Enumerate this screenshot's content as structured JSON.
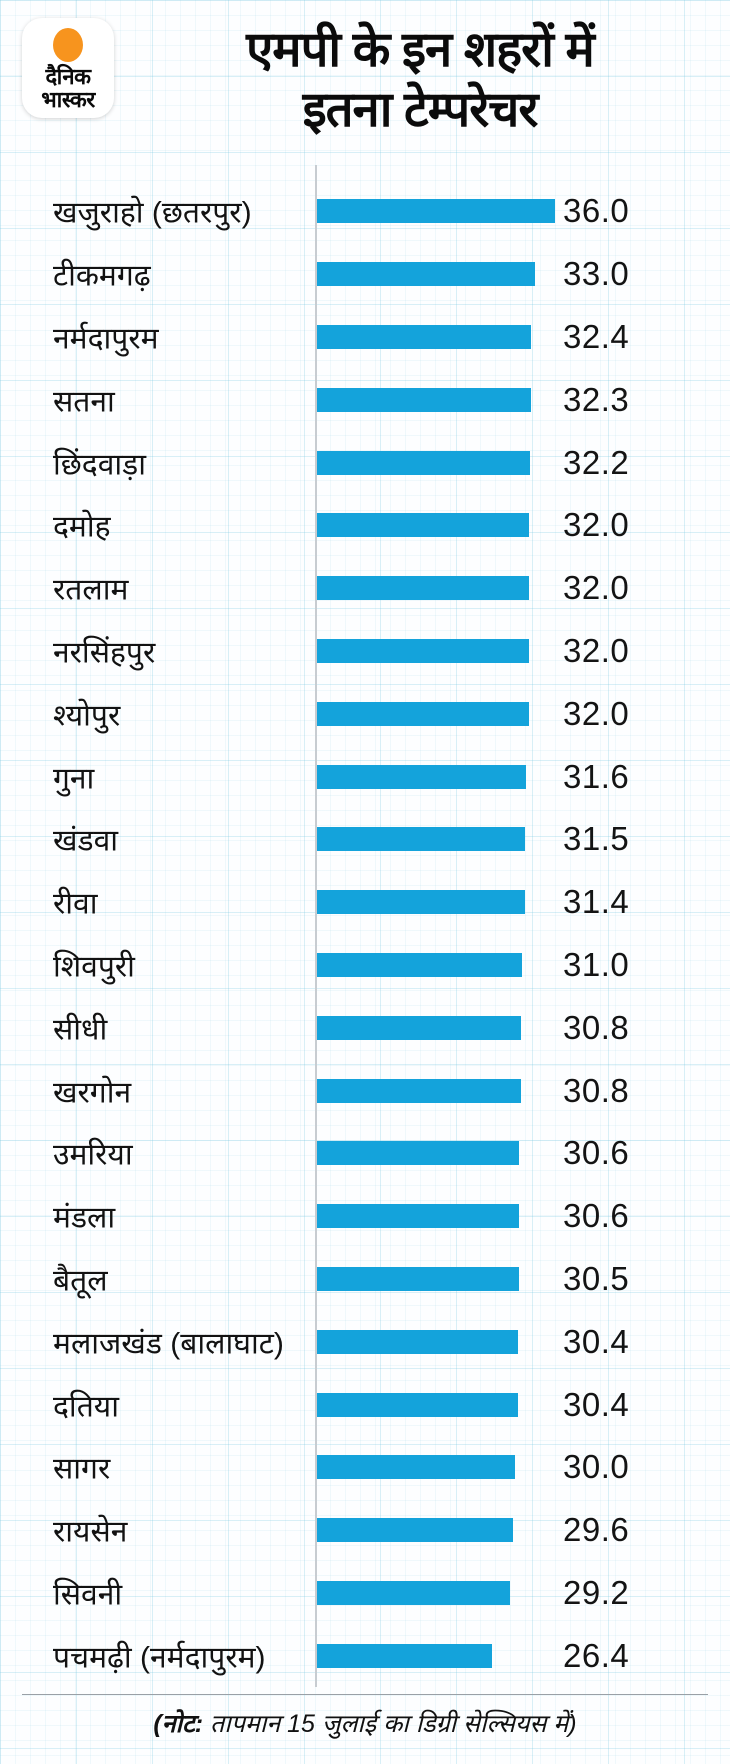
{
  "brand": {
    "logo_line1": "दैनिक",
    "logo_line2": "भास्कर",
    "logo_dot_color": "#f7941e"
  },
  "header": {
    "title_line1": "एमपी के इन शहरों में",
    "title_line2": "इतना टेम्परेचर"
  },
  "footer": {
    "note_bold": "(नोट:",
    "note_rest": " तापमान 15 जुलाई का डिग्री सेल्सियस में)"
  },
  "colors": {
    "bar": "#14a3db",
    "axis_line": "#c7ccd1",
    "grid": "#cfe9f2",
    "title_text": "#0b0b0b"
  },
  "chart_data": {
    "type": "bar",
    "orientation": "horizontal",
    "title": "एमपी के इन शहरों में इतना टेम्परेचर",
    "note": "(नोट: तापमान 15 जुलाई का डिग्री सेल्सियस में)",
    "unit": "डिग्री सेल्सियस",
    "value_axis_max_for_scale": 36.0,
    "grid": true,
    "categories": [
      "खजुराहो (छतरपुर)",
      "टीकमगढ़",
      "नर्मदापुरम",
      "सतना",
      "छिंदवाड़ा",
      "दमोह",
      "रतलाम",
      "नरसिंहपुर",
      "श्योपुर",
      "गुना",
      "खंडवा",
      "रीवा",
      "शिवपुरी",
      "सीधी",
      "खरगोन",
      "उमरिया",
      "मंडला",
      "बैतूल",
      "मलाजखंड (बालाघाट)",
      "दतिया",
      "सागर",
      "रायसेन",
      "सिवनी",
      "पचमढ़ी (नर्मदापुरम)"
    ],
    "values": [
      36.0,
      33.0,
      32.4,
      32.3,
      32.2,
      32.0,
      32.0,
      32.0,
      32.0,
      31.6,
      31.5,
      31.4,
      31.0,
      30.8,
      30.8,
      30.6,
      30.6,
      30.5,
      30.4,
      30.4,
      30.0,
      29.6,
      29.2,
      26.4
    ],
    "value_labels": [
      "36.0",
      "33.0",
      "32.4",
      "32.3",
      "32.2",
      "32.0",
      "32.0",
      "32.0",
      "32.0",
      "31.6",
      "31.5",
      "31.4",
      "31.0",
      "30.8",
      "30.8",
      "30.6",
      "30.6",
      "30.5",
      "30.4",
      "30.4",
      "30.0",
      "29.6",
      "29.2",
      "26.4"
    ]
  }
}
